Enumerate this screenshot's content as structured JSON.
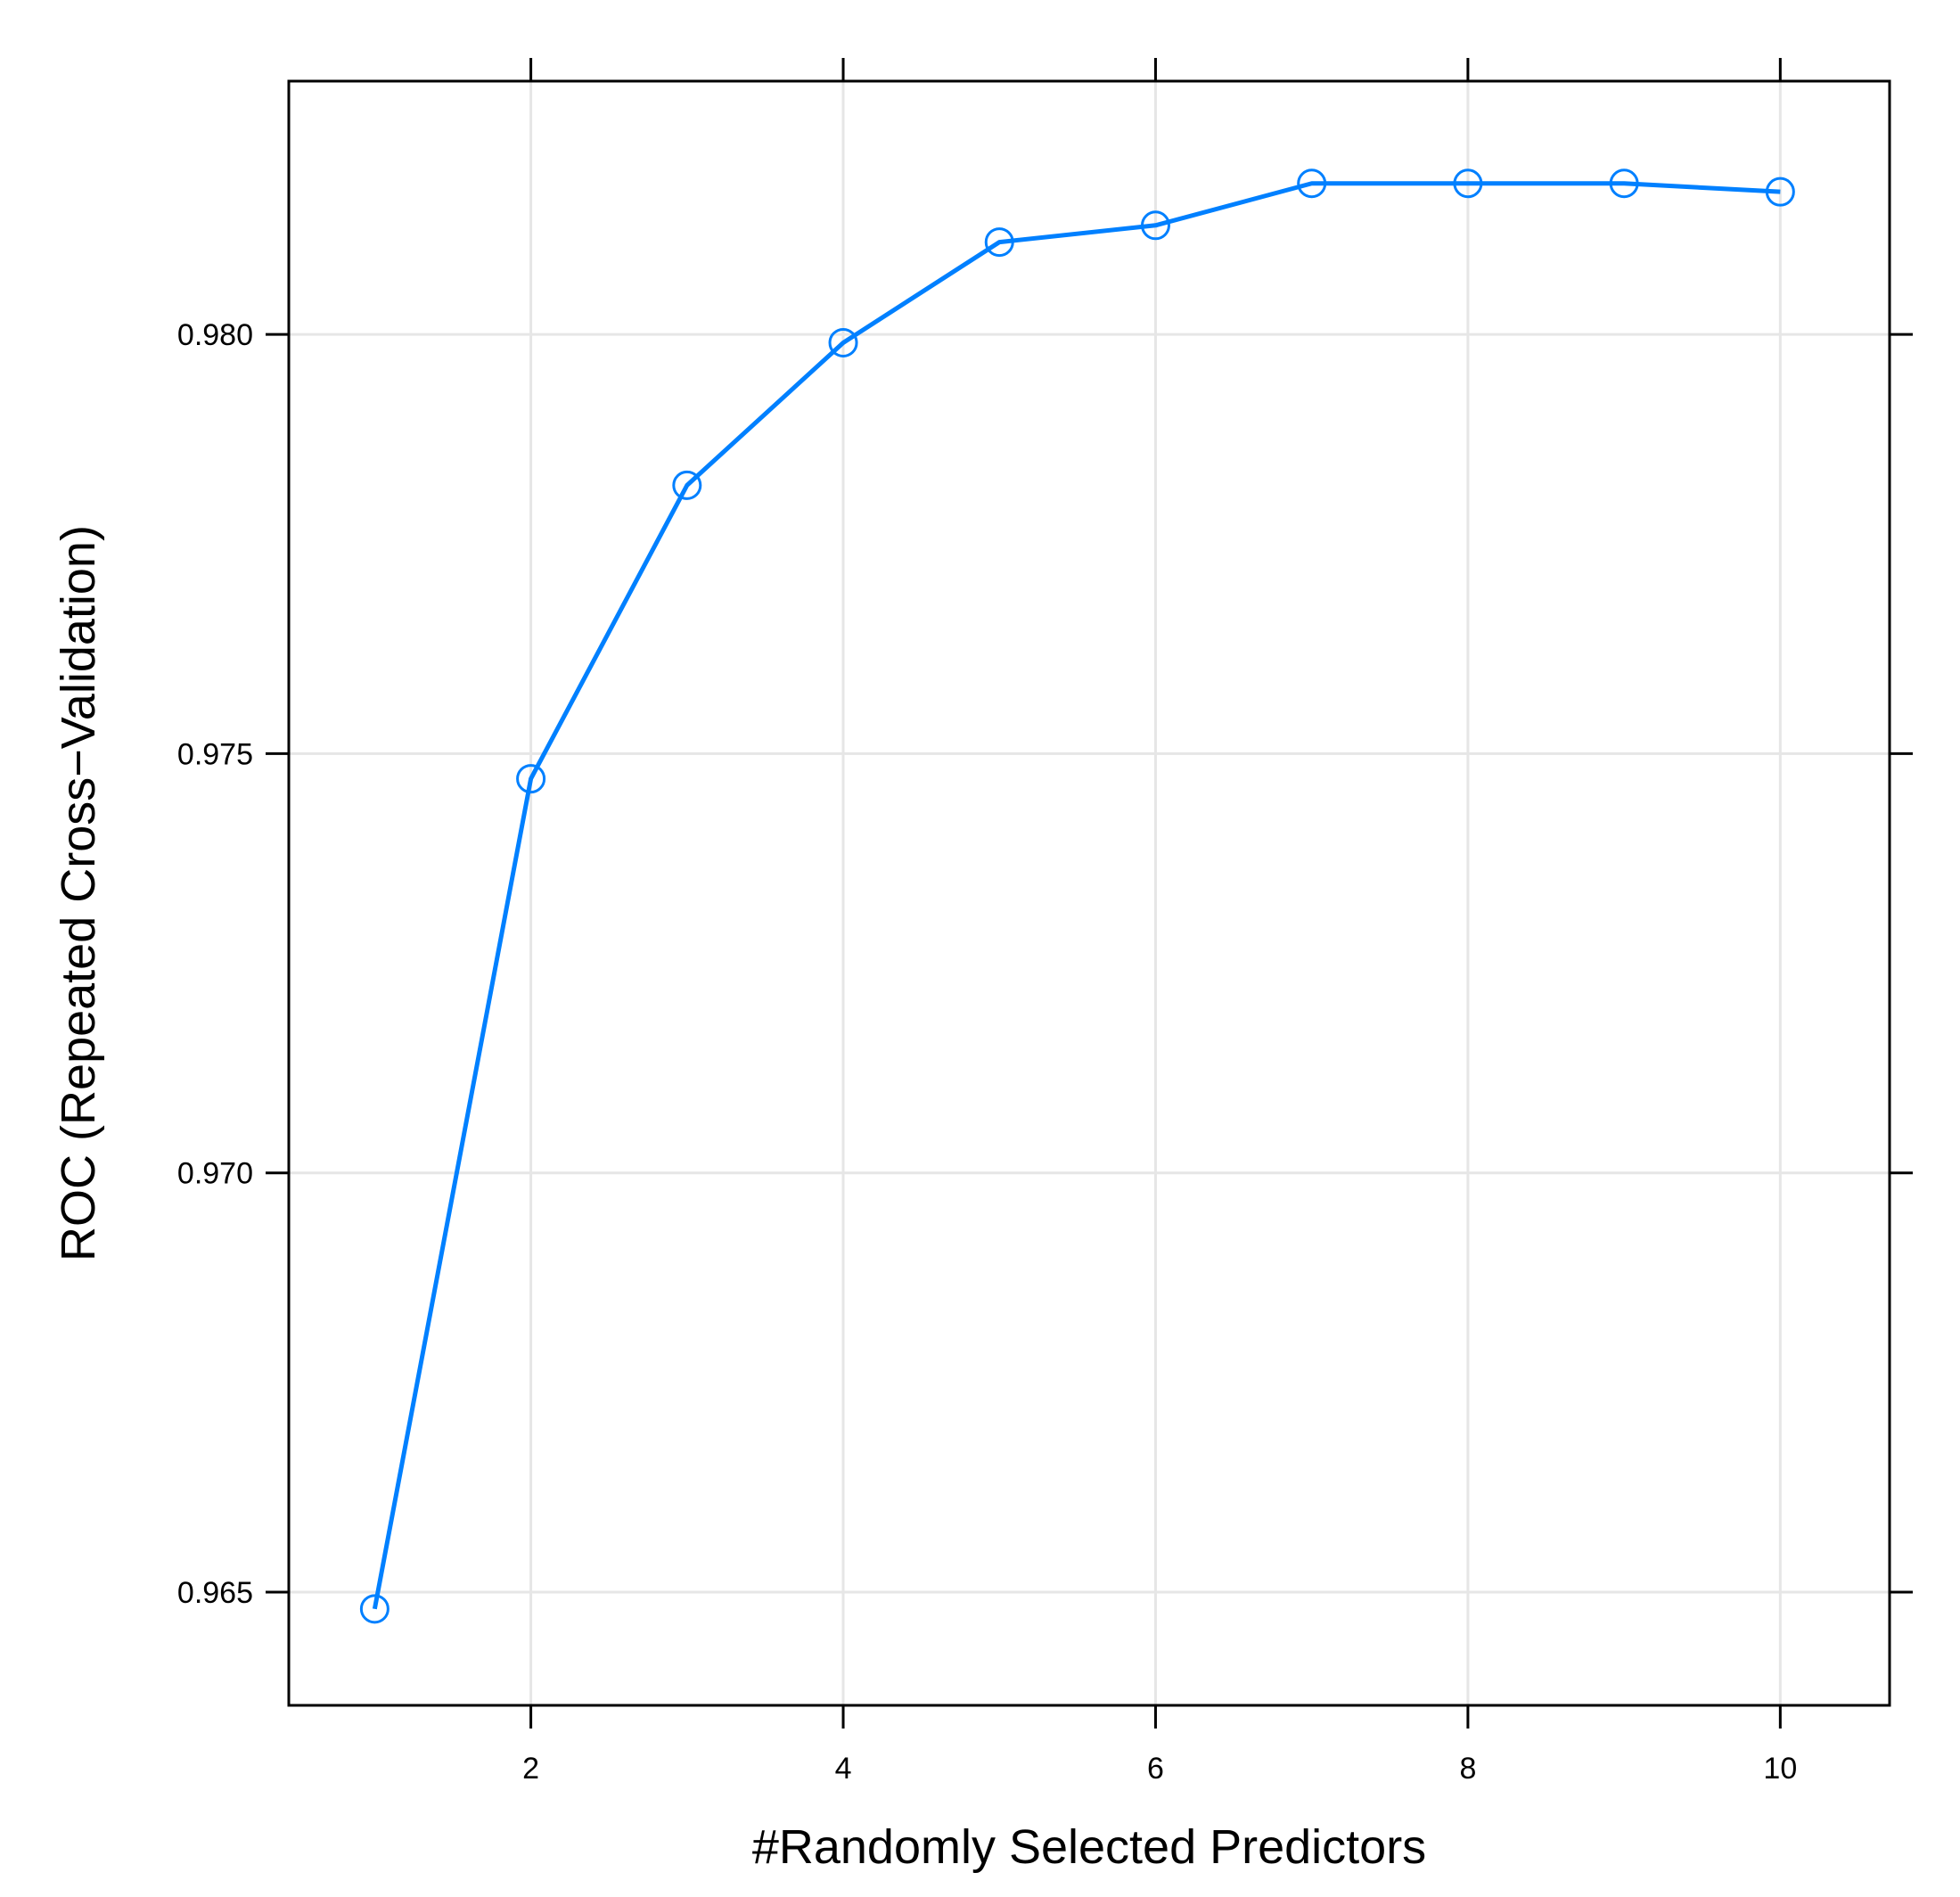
{
  "chart_data": {
    "type": "line",
    "title": "",
    "xlabel": "#Randomly Selected Predictors",
    "ylabel": "ROC (Repeated Cross−Validation)",
    "x": [
      1,
      2,
      3,
      4,
      5,
      6,
      7,
      8,
      9,
      10
    ],
    "series": [
      {
        "values": [
          0.9648,
          0.9747,
          0.9782,
          0.9799,
          0.9811,
          0.9813,
          0.9818,
          0.9818,
          0.9818,
          0.9817
        ]
      }
    ],
    "xticks": [
      2,
      4,
      6,
      8,
      10
    ],
    "xtick_labels": [
      "2",
      "4",
      "6",
      "8",
      "10"
    ],
    "yticks": [
      0.965,
      0.97,
      0.975,
      0.98
    ],
    "ytick_labels": [
      "0.965",
      "0.970",
      "0.975",
      "0.980"
    ],
    "xlim": [
      0.45,
      10.7
    ],
    "ylim": [
      0.96365,
      0.98302
    ],
    "grid": true,
    "marker": "open-circle",
    "line_color": "#0080ff",
    "grid_color": "#e6e6e6",
    "frame_color": "#000000"
  }
}
